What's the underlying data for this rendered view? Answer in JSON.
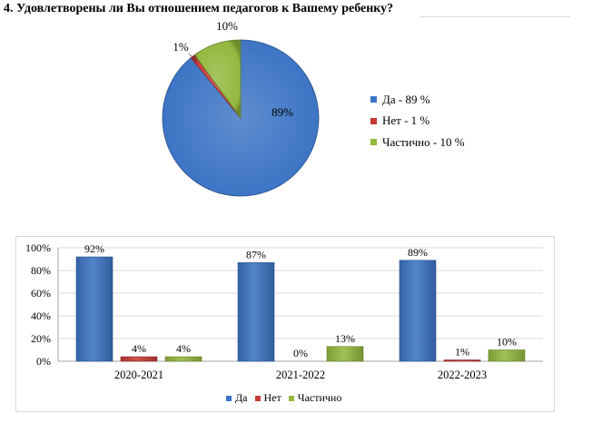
{
  "question_title": "4. Удовлетворены ли Вы отношением педагогов к Вашему ребенку?",
  "colors": {
    "yes": "#3c74c4",
    "no": "#c83a36",
    "partial": "#93b83e"
  },
  "chart_data": [
    {
      "type": "pie",
      "title": "",
      "slices": [
        {
          "label": "Да",
          "value": 89,
          "data_label": "89%",
          "legend": "Да - 89 %",
          "color_key": "yes"
        },
        {
          "label": "Нет",
          "value": 1,
          "data_label": "1%",
          "legend": "Нет - 1 %",
          "color_key": "no"
        },
        {
          "label": "Частично",
          "value": 10,
          "data_label": "10%",
          "legend": "Частично - 10 %",
          "color_key": "partial"
        }
      ],
      "legend_position": "right"
    },
    {
      "type": "bar",
      "title": "",
      "categories": [
        "2020-2021",
        "2021-2022",
        "2022-2023"
      ],
      "series": [
        {
          "name": "Да",
          "values": [
            92,
            87,
            89
          ],
          "data_labels": [
            "92%",
            "87%",
            "89%"
          ],
          "color_key": "yes"
        },
        {
          "name": "Нет",
          "values": [
            4,
            0,
            1
          ],
          "data_labels": [
            "4%",
            "0%",
            "1%"
          ],
          "color_key": "no"
        },
        {
          "name": "Частично",
          "values": [
            4,
            13,
            10
          ],
          "data_labels": [
            "4%",
            "13%",
            "10%"
          ],
          "color_key": "partial"
        }
      ],
      "ylim": [
        0,
        100
      ],
      "yticks": [
        "0%",
        "20%",
        "40%",
        "60%",
        "80%",
        "100%"
      ],
      "grid": true,
      "legend_position": "bottom"
    }
  ]
}
